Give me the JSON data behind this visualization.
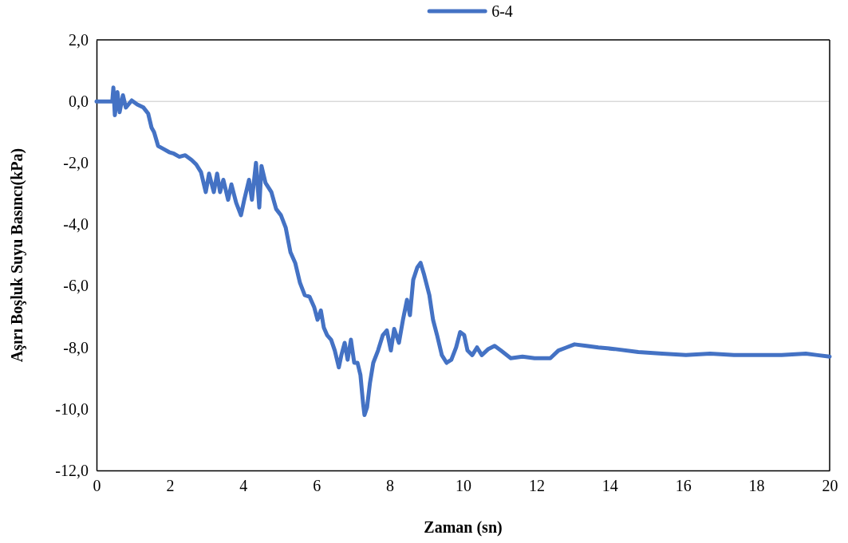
{
  "chart_data": {
    "type": "line",
    "xlabel": "Zaman (sn)",
    "ylabel": "Aşırı Boşluk Suyu Basıncı(kPa)",
    "xlim": [
      0,
      20
    ],
    "xticks": [
      0,
      2,
      4,
      6,
      8,
      10,
      12,
      14,
      16,
      18,
      20
    ],
    "ylim": [
      -12,
      2
    ],
    "yticks": [
      {
        "value": 2,
        "label": "2,0"
      },
      {
        "value": 0,
        "label": "0,0"
      },
      {
        "value": -2,
        "label": "-2,0"
      },
      {
        "value": -4,
        "label": "-4,0"
      },
      {
        "value": -6,
        "label": "-6,0"
      },
      {
        "value": -8,
        "label": "-8,0"
      },
      {
        "value": -10,
        "label": "-10,0"
      },
      {
        "value": -12,
        "label": "-12,0"
      }
    ],
    "ref_lines": [
      {
        "axis": "y",
        "value": 0,
        "color": "#d9d9d9"
      }
    ],
    "legend": "top",
    "marker": "none",
    "line_style": "solid",
    "x": [
      0,
      0.3,
      0.43,
      0.46,
      0.5,
      0.57,
      0.63,
      0.72,
      0.8,
      0.96,
      1.11,
      1.28,
      1.41,
      1.5,
      1.57,
      1.68,
      1.83,
      1.98,
      2.11,
      2.26,
      2.42,
      2.59,
      2.72,
      2.85,
      2.98,
      3.07,
      3.2,
      3.29,
      3.37,
      3.46,
      3.59,
      3.68,
      3.81,
      3.94,
      4.03,
      4.16,
      4.24,
      4.35,
      4.44,
      4.5,
      4.61,
      4.77,
      4.9,
      5.03,
      5.16,
      5.29,
      5.42,
      5.55,
      5.68,
      5.81,
      5.94,
      6.03,
      6.12,
      6.2,
      6.29,
      6.4,
      6.5,
      6.61,
      6.68,
      6.77,
      6.85,
      6.94,
      7.03,
      7.12,
      7.2,
      7.27,
      7.31,
      7.38,
      7.46,
      7.55,
      7.68,
      7.81,
      7.92,
      8.03,
      8.12,
      8.25,
      8.36,
      8.47,
      8.55,
      8.64,
      8.75,
      8.84,
      8.94,
      9.08,
      9.18,
      9.29,
      9.42,
      9.55,
      9.68,
      9.81,
      9.92,
      10.03,
      10.12,
      10.25,
      10.38,
      10.51,
      10.69,
      10.86,
      11.03,
      11.3,
      11.62,
      11.95,
      12.38,
      12.6,
      12.82,
      13.04,
      13.36,
      13.69,
      14.12,
      14.78,
      15.43,
      16.08,
      16.74,
      17.39,
      18.04,
      18.69,
      19.35,
      19.67,
      20
    ],
    "series": [
      {
        "name": "6-4",
        "color": "#4472c4",
        "values": [
          0,
          0,
          0,
          0.45,
          -0.45,
          0.3,
          -0.35,
          0.2,
          -0.2,
          0.03,
          -0.1,
          -0.2,
          -0.4,
          -0.85,
          -1.0,
          -1.45,
          -1.55,
          -1.65,
          -1.7,
          -1.8,
          -1.75,
          -1.9,
          -2.05,
          -2.3,
          -2.95,
          -2.35,
          -2.95,
          -2.35,
          -2.95,
          -2.55,
          -3.2,
          -2.7,
          -3.3,
          -3.7,
          -3.2,
          -2.55,
          -3.2,
          -2.0,
          -3.45,
          -2.1,
          -2.65,
          -2.95,
          -3.5,
          -3.7,
          -4.1,
          -4.9,
          -5.25,
          -5.9,
          -6.3,
          -6.35,
          -6.7,
          -7.1,
          -6.8,
          -7.35,
          -7.6,
          -7.75,
          -8.1,
          -8.65,
          -8.25,
          -7.85,
          -8.4,
          -7.75,
          -8.5,
          -8.5,
          -8.9,
          -9.8,
          -10.2,
          -9.95,
          -9.15,
          -8.5,
          -8.1,
          -7.6,
          -7.45,
          -8.1,
          -7.4,
          -7.85,
          -7.1,
          -6.45,
          -6.95,
          -5.8,
          -5.4,
          -5.25,
          -5.65,
          -6.3,
          -7.1,
          -7.6,
          -8.25,
          -8.5,
          -8.4,
          -8.0,
          -7.5,
          -7.6,
          -8.1,
          -8.25,
          -8.0,
          -8.25,
          -8.05,
          -7.95,
          -8.1,
          -8.35,
          -8.3,
          -8.35,
          -8.35,
          -8.1,
          -8.0,
          -7.9,
          -7.95,
          -8.0,
          -8.05,
          -8.15,
          -8.2,
          -8.25,
          -8.2,
          -8.25,
          -8.25,
          -8.25,
          -8.2,
          -8.25,
          -8.3
        ]
      }
    ]
  }
}
